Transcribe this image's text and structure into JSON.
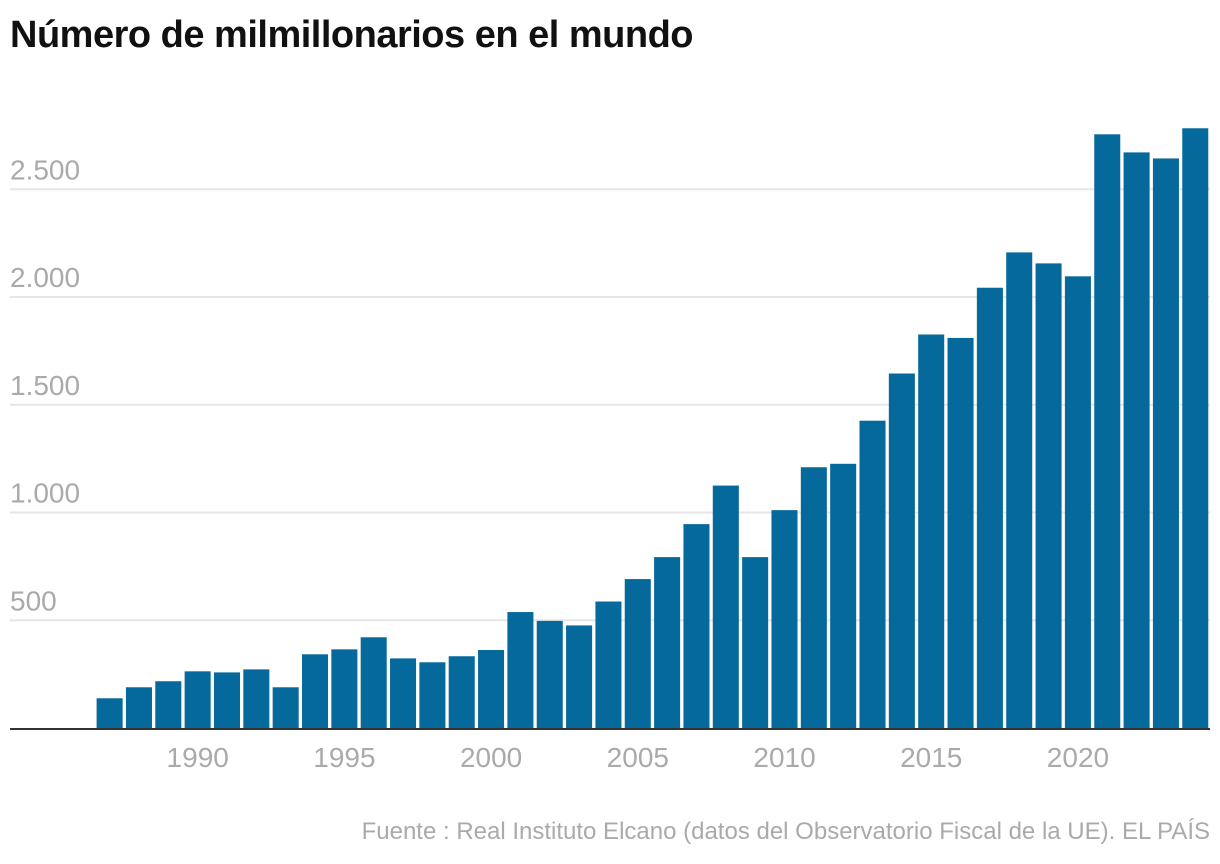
{
  "chart_data": {
    "type": "bar",
    "title": "Número de milmillonarios en el mundo",
    "xlabel": "",
    "ylabel": "",
    "categories": [
      1987,
      1988,
      1989,
      1990,
      1991,
      1992,
      1993,
      1994,
      1995,
      1996,
      1997,
      1998,
      1999,
      2000,
      2001,
      2002,
      2003,
      2004,
      2005,
      2006,
      2007,
      2008,
      2009,
      2010,
      2011,
      2012,
      2013,
      2014,
      2015,
      2016,
      2017,
      2018,
      2019,
      2020,
      2021,
      2022,
      2023,
      2024
    ],
    "values": [
      138,
      189,
      217,
      263,
      258,
      272,
      189,
      342,
      365,
      421,
      323,
      305,
      333,
      362,
      538,
      497,
      476,
      587,
      691,
      793,
      946,
      1125,
      793,
      1011,
      1210,
      1226,
      1426,
      1645,
      1826,
      1810,
      2043,
      2207,
      2156,
      2096,
      2755,
      2671,
      2643,
      2783
    ],
    "ylim": [
      0,
      2800
    ],
    "yticks": [
      500,
      1000,
      1500,
      2000,
      2500
    ],
    "ytick_labels": [
      "500",
      "1.000",
      "1.500",
      "2.000",
      "2.500"
    ],
    "xticks": [
      1990,
      1995,
      2000,
      2005,
      2010,
      2015,
      2020
    ],
    "grid": true,
    "bar_color": "#06699b",
    "source": "Fuente : Real Instituto Elcano (datos del Observatorio Fiscal de la UE). EL PAÍS"
  }
}
